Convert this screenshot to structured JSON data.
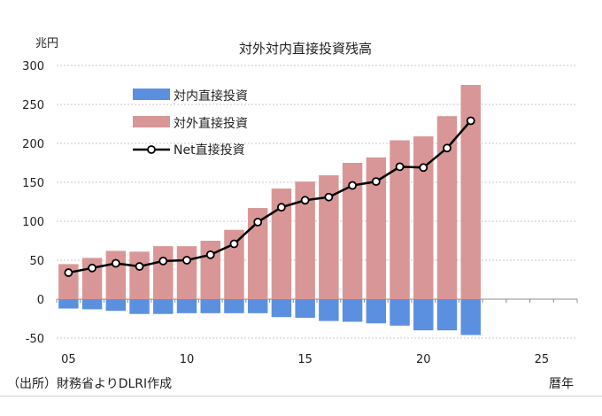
{
  "chart_data": {
    "type": "bar",
    "title": "対外対内直接投資残高",
    "ylabel": "兆円",
    "xlabel": "暦年",
    "ylim": [
      -50,
      300
    ],
    "yticks": [
      -50,
      0,
      50,
      100,
      150,
      200,
      250,
      300
    ],
    "ytick_labels": [
      "-50",
      "0",
      "50",
      "100",
      "150",
      "200",
      "250",
      "300"
    ],
    "xlim": [
      2005,
      2026
    ],
    "xticks": [
      2005,
      2010,
      2015,
      2020,
      2025
    ],
    "xtick_labels": [
      "05",
      "10",
      "15",
      "20",
      "25"
    ],
    "grid": "horizontal dotted",
    "legend_position": "upper-left",
    "categories": [
      2005,
      2006,
      2007,
      2008,
      2009,
      2010,
      2011,
      2012,
      2013,
      2014,
      2015,
      2016,
      2017,
      2018,
      2019,
      2020,
      2021,
      2022
    ],
    "series": [
      {
        "name": "対内直接投資",
        "type": "bar",
        "color": "#5b8fe0",
        "values": [
          -12,
          -13,
          -15,
          -19,
          -19,
          -18,
          -18,
          -18,
          -18,
          -23,
          -24,
          -28,
          -29,
          -31,
          -34,
          -40,
          -40,
          -46
        ]
      },
      {
        "name": "対外直接投資",
        "type": "bar",
        "color": "#d99696",
        "values": [
          45,
          53,
          62,
          61,
          68,
          68,
          75,
          89,
          117,
          142,
          151,
          159,
          175,
          182,
          204,
          209,
          235,
          275
        ]
      },
      {
        "name": "Net直接投資",
        "type": "line",
        "color": "#000000",
        "values": [
          34,
          40,
          46,
          42,
          49,
          50,
          57,
          71,
          99,
          118,
          127,
          131,
          146,
          151,
          170,
          169,
          194,
          229
        ]
      }
    ]
  },
  "footer": {
    "source": "（出所）財務省よりDLRI作成",
    "x_unit": "暦年"
  }
}
